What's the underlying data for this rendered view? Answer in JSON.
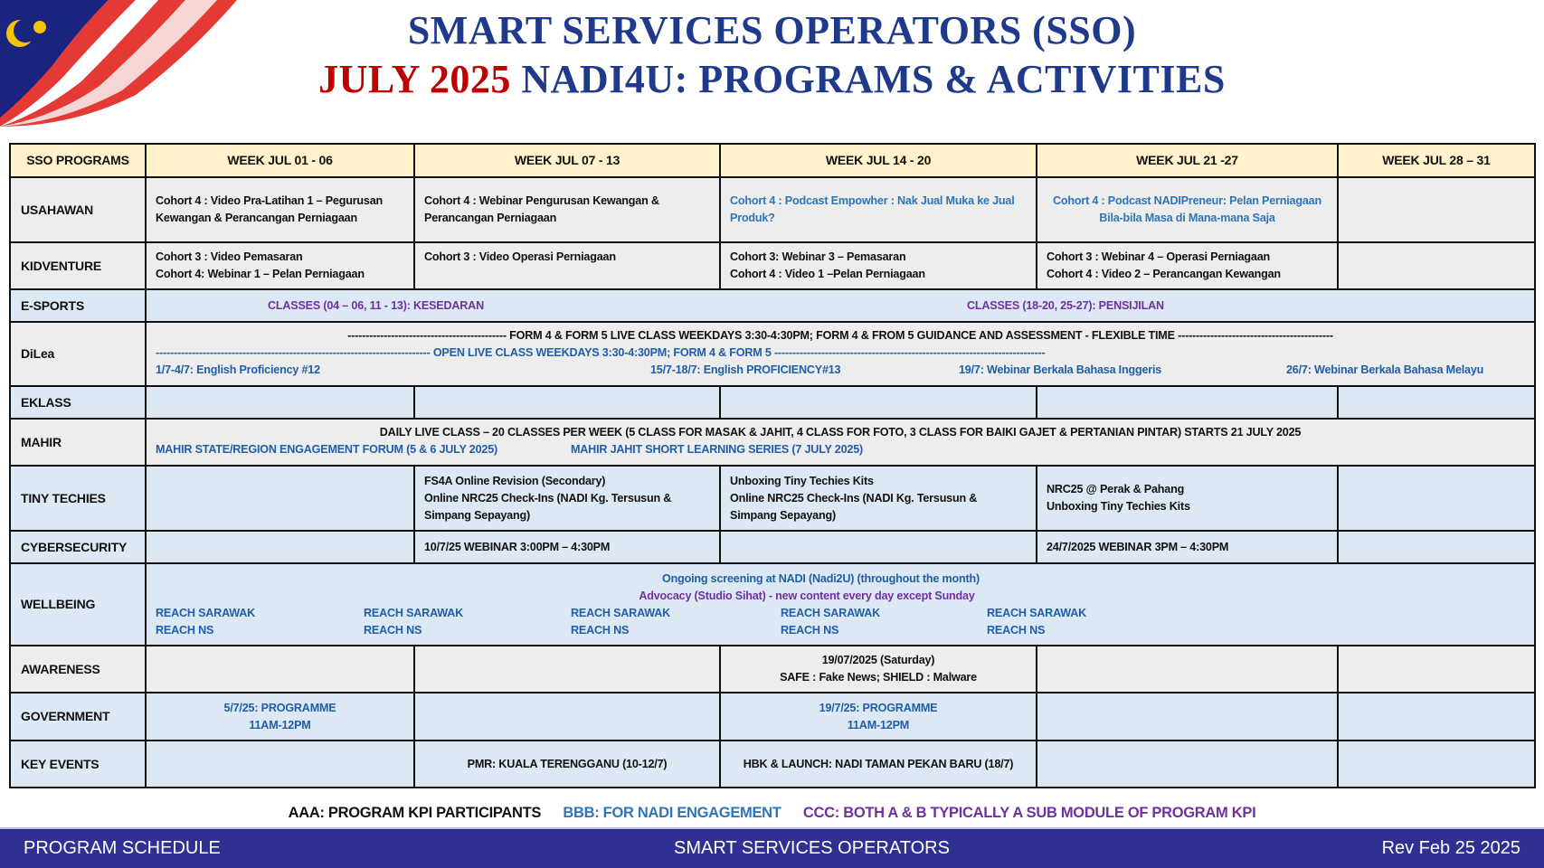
{
  "header": {
    "line1": "SMART SERVICES OPERATORS (SSO)",
    "line2_red": "JULY 2025",
    "line2_blue": "NADI4U: PROGRAMS & ACTIVITIES"
  },
  "table": {
    "columns": [
      "SSO PROGRAMS",
      "WEEK JUL 01 - 06",
      "WEEK JUL 07 - 13",
      "WEEK JUL 14 - 20",
      "WEEK JUL 21 -27",
      "WEEK JUL 28 – 31"
    ],
    "usahawan": {
      "label": "USAHAWAN",
      "w1": "Cohort 4 : Video Pra-Latihan 1 – Pegurusan Kewangan & Perancangan Perniagaan",
      "w2": "Cohort 4 : Webinar Pengurusan Kewangan & Perancangan Perniagaan",
      "w3": "Cohort 4 : Podcast Empowher : Nak Jual Muka ke Jual Produk?",
      "w4": "Cohort 4 : Podcast NADIPreneur: Pelan Perniagaan Bila-bila Masa di Mana-mana Saja"
    },
    "kidventure": {
      "label": "KIDVENTURE",
      "w1a": "Cohort 3 : Video Pemasaran",
      "w1b": "Cohort 4: Webinar 1 – Pelan Perniagaan",
      "w2": "Cohort 3 : Video Operasi Perniagaan",
      "w3a": "Cohort 3: Webinar 3 – Pemasaran",
      "w3b": "Cohort 4 : Video 1 –Pelan Perniagaan",
      "w4a": "Cohort 3 : Webinar 4 – Operasi Perniagaan",
      "w4b": "Cohort 4 : Video 2 – Perancangan Kewangan"
    },
    "esports": {
      "label": "E-SPORTS",
      "a": "CLASSES (04 – 06, 11 - 13): KESEDARAN",
      "b": "CLASSES (18-20, 25-27): PENSIJILAN"
    },
    "dilea": {
      "label": "DiLea",
      "line1": "-------------------------------------------- FORM 4 & FORM 5 LIVE CLASS WEEKDAYS 3:30-4:30PM; FORM 4 & FROM 5 GUIDANCE AND ASSESSMENT - FLEXIBLE TIME -------------------------------------------",
      "line2": "---------------------------------------------------------------------------- OPEN LIVE CLASS WEEKDAYS 3:30-4:30PM; FORM 4 & FORM 5 ---------------------------------------------------------------------------",
      "e1": "1/7-4/7: English Proficiency #12",
      "e2": "15/7-18/7: English PROFICIENCY#13",
      "e3": "19/7: Webinar Berkala Bahasa Inggeris",
      "e4": "26/7: Webinar Berkala Bahasa Melayu"
    },
    "eklass": {
      "label": "EKLASS"
    },
    "mahir": {
      "label": "MAHIR",
      "line1": "DAILY LIVE CLASS – 20 CLASSES PER WEEK (5 CLASS FOR MASAK & JAHIT, 4 CLASS FOR FOTO, 3 CLASS FOR BAIKI GAJET & PERTANIAN PINTAR) STARTS 21 JULY 2025",
      "a": "MAHIR STATE/REGION ENGAGEMENT FORUM (5 & 6 JULY 2025)",
      "b": "MAHIR JAHIT SHORT LEARNING SERIES (7 JULY 2025)"
    },
    "tiny": {
      "label": "TINY TECHIES",
      "w2": "FS4A Online Revision (Secondary)\nOnline NRC25 Check-Ins (NADI Kg. Tersusun & Simpang Sepayang)",
      "w3": "Unboxing Tiny Techies Kits\nOnline NRC25 Check-Ins (NADI Kg. Tersusun & Simpang Sepayang)",
      "w4": "NRC25 @ Perak & Pahang\nUnboxing Tiny Techies Kits"
    },
    "cyber": {
      "label": "CYBERSECURITY",
      "w2": "10/7/25 WEBINAR 3:00PM – 4:30PM",
      "w4": "24/7/2025 WEBINAR 3PM – 4:30PM"
    },
    "wellbeing": {
      "label": "WELLBEING",
      "line1": "Ongoing screening  at NADI (Nadi2U) (throughout the month)",
      "line2": "Advocacy (Studio Sihat) - new content every day except Sunday",
      "reach_a": "REACH SARAWAK",
      "reach_b": "REACH NS"
    },
    "awareness": {
      "label": "AWARENESS",
      "w3a": "19/07/2025 (Saturday)",
      "w3b": "SAFE : Fake News; SHIELD : Malware"
    },
    "government": {
      "label": "GOVERNMENT",
      "w1a": "5/7/25: PROGRAMME",
      "w1b": "11AM-12PM",
      "w3a": "19/7/25: PROGRAMME",
      "w3b": "11AM-12PM"
    },
    "events": {
      "label": "KEY EVENTS",
      "w2": "PMR: KUALA TERENGGANU (10-12/7)",
      "w3": "HBK & LAUNCH: NADI TAMAN PEKAN BARU (18/7)"
    }
  },
  "legend": {
    "a": "AAA: PROGRAM KPI PARTICIPANTS",
    "b": "BBB:  FOR NADI ENGAGEMENT",
    "c": "CCC:  BOTH  A & B  TYPICALLY A SUB MODULE OF PROGRAM KPI"
  },
  "footer": {
    "left": "PROGRAM SCHEDULE",
    "center": "SMART SERVICES OPERATORS",
    "right": "Rev  Feb 25 2025"
  },
  "colors": {
    "title": "#1f3a8a",
    "red": "#c00000",
    "header_fill": "#fff2cc",
    "footer_bar": "#2e3192",
    "blue_text": "#2e75b6",
    "purple_text": "#7030a0"
  }
}
